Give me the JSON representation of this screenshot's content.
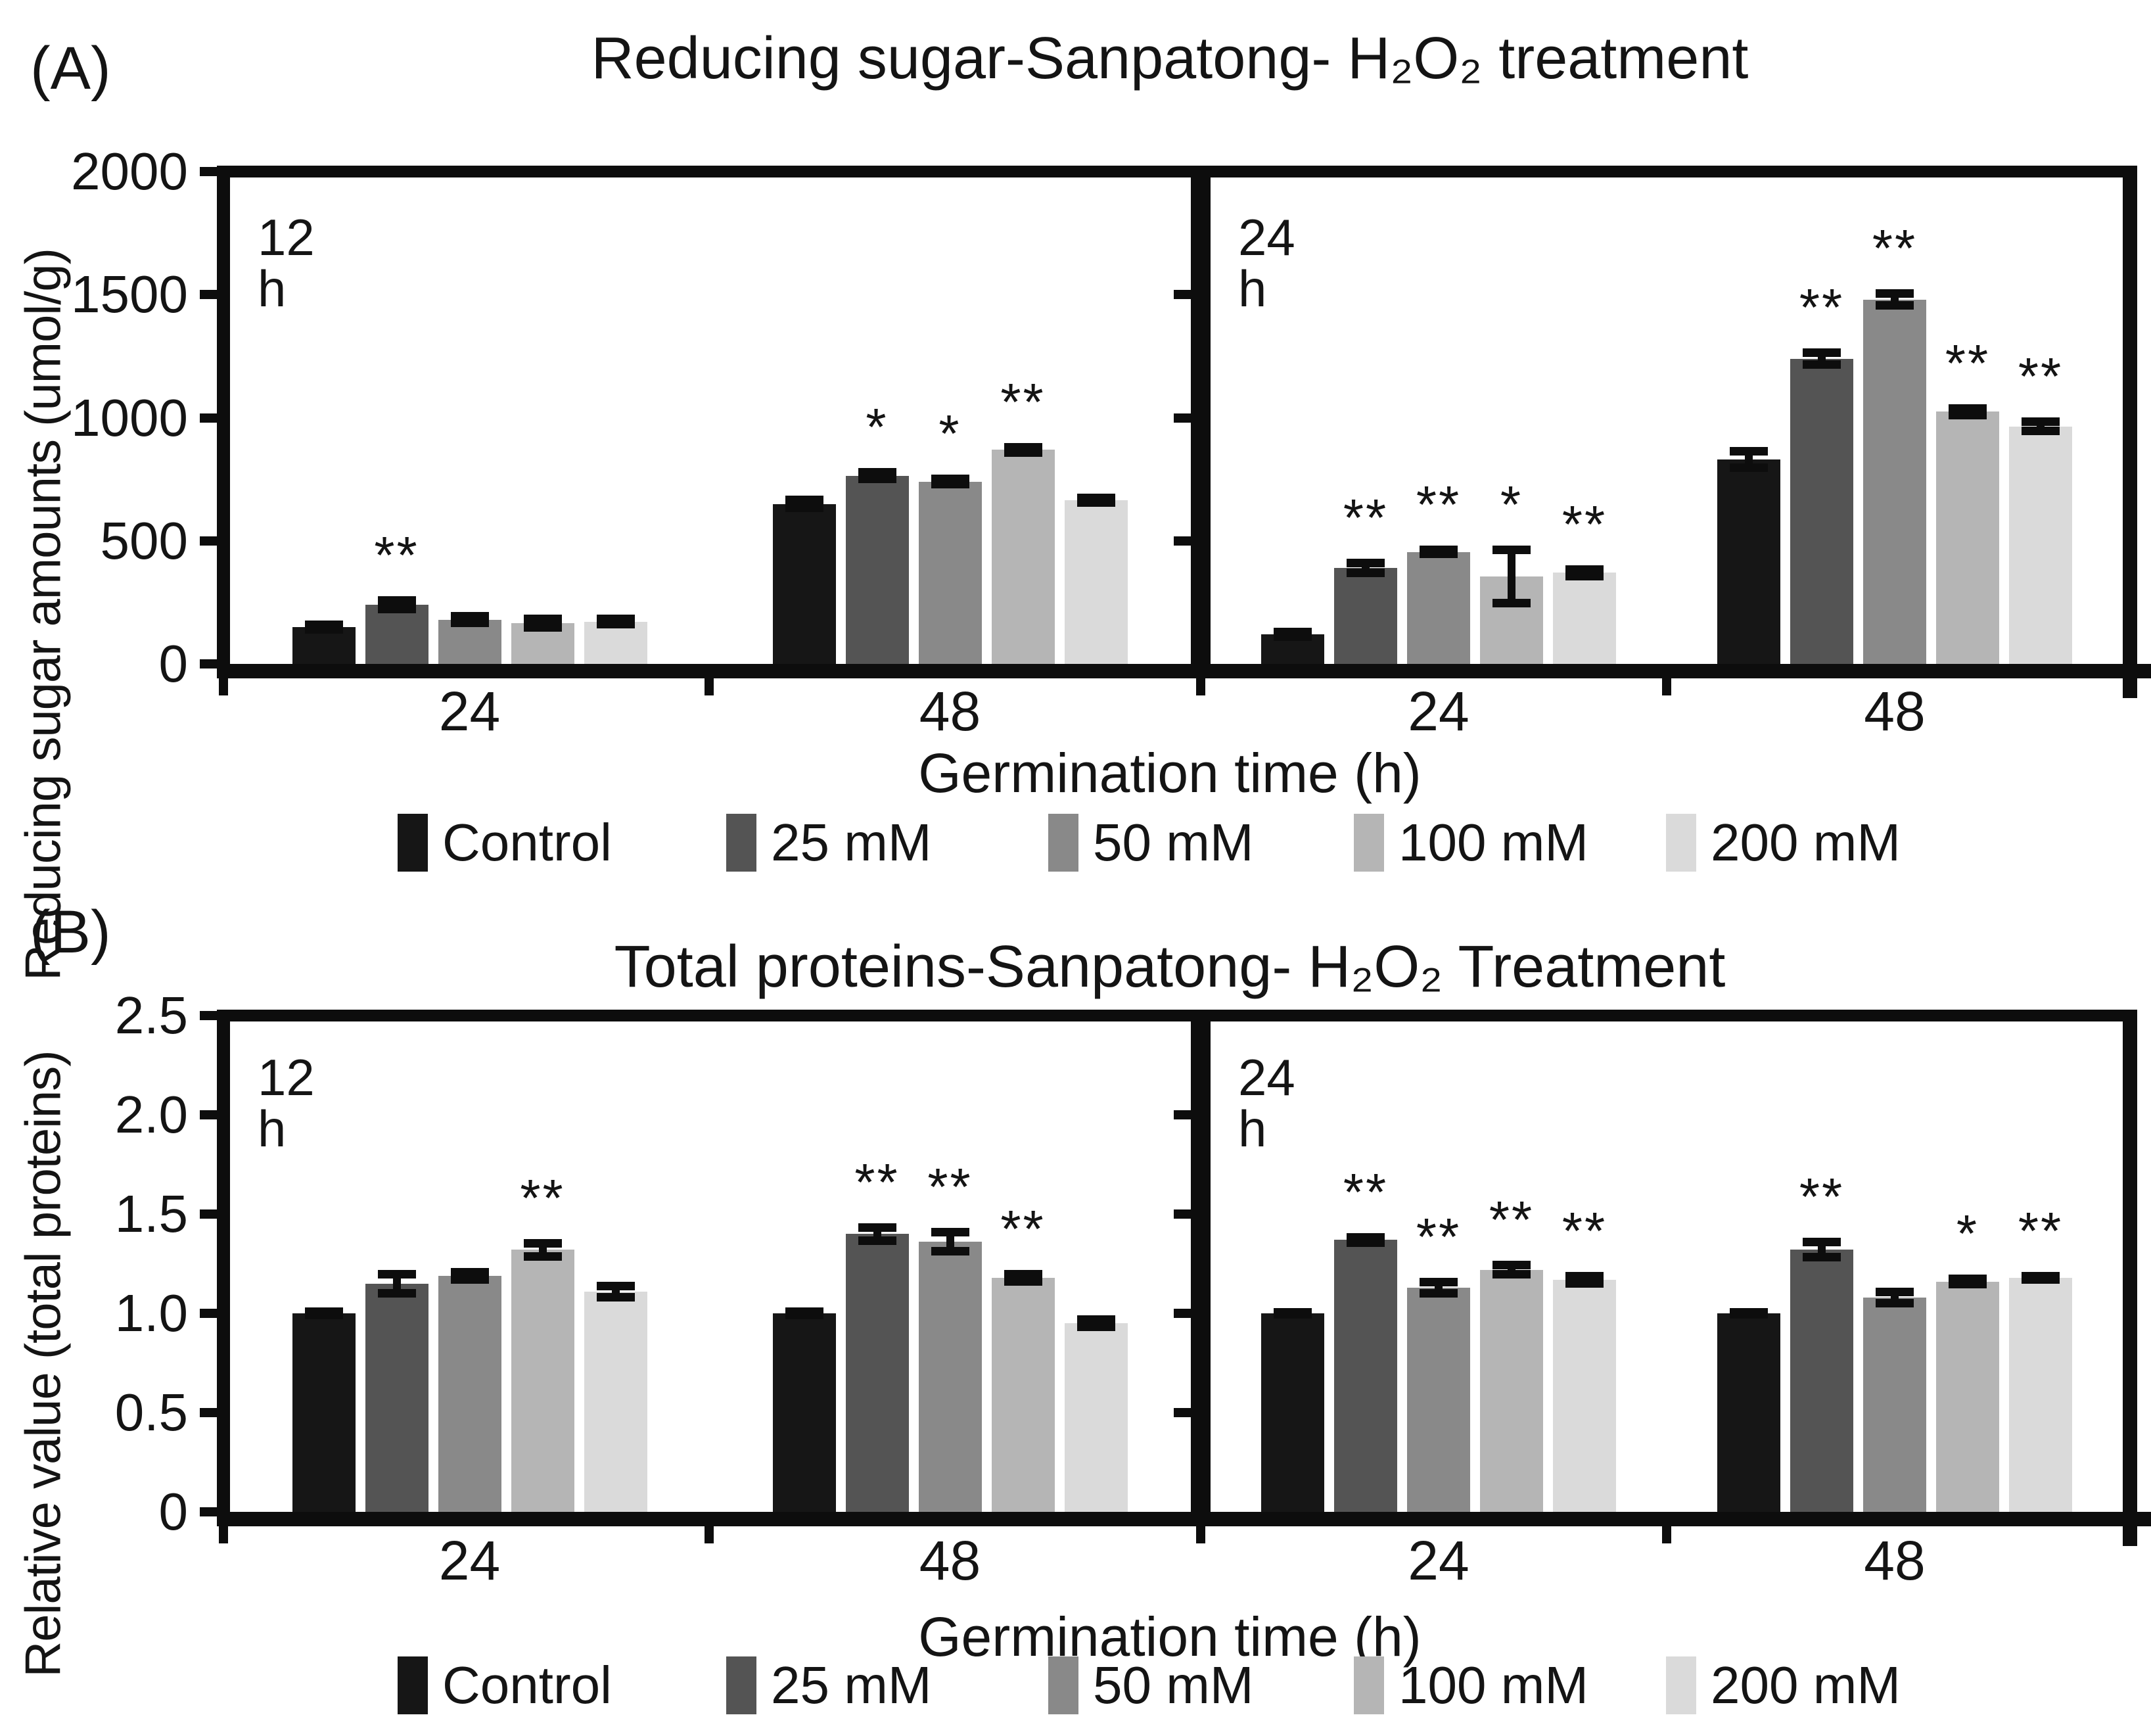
{
  "figure": {
    "panel_a_label": "(A)",
    "panel_b_label": "(B)"
  },
  "legend": {
    "entries": [
      {
        "label": "Control",
        "color": "#161616"
      },
      {
        "label": "25 mM",
        "color": "#545454"
      },
      {
        "label": "50 mM",
        "color": "#898989"
      },
      {
        "label": "100 mM",
        "color": "#b5b5b5"
      },
      {
        "label": "200 mM",
        "color": "#dadada"
      }
    ]
  },
  "chart_data": [
    {
      "id": "A",
      "type": "bar",
      "title": "Reducing sugar-Sanpatong- H₂O₂  treatment",
      "ylabel": "Reducing sugar amounts (umol/g)",
      "xlabel": "Germination time (h)",
      "ylim": [
        0,
        2000
      ],
      "yticks": [
        0,
        500,
        1000,
        1500,
        2000
      ],
      "ytick_labels": [
        "0",
        "500",
        "1000",
        "1500",
        "2000"
      ],
      "series": [
        "Control",
        "25 mM",
        "50 mM",
        "100 mM",
        "200 mM"
      ],
      "legend_position": "bottom",
      "grid": false,
      "subplots": [
        {
          "label": "12 h",
          "groups": [
            {
              "category": "24",
              "values": [
                150,
                240,
                180,
                165,
                172
              ],
              "errors": [
                10,
                18,
                15,
                18,
                12
              ],
              "sig": [
                "",
                "**",
                "",
                "",
                ""
              ]
            },
            {
              "category": "48",
              "values": [
                650,
                765,
                740,
                870,
                665
              ],
              "errors": [
                18,
                15,
                12,
                12,
                10
              ],
              "sig": [
                "",
                "*",
                "*",
                "**",
                ""
              ]
            }
          ]
        },
        {
          "label": "24 h",
          "groups": [
            {
              "category": "24",
              "values": [
                120,
                390,
                455,
                355,
                370
              ],
              "errors": [
                10,
                22,
                10,
                110,
                15
              ],
              "sig": [
                "",
                "**",
                "**",
                "*",
                "**"
              ]
            },
            {
              "category": "48",
              "values": [
                830,
                1240,
                1480,
                1025,
                965
              ],
              "errors": [
                35,
                25,
                25,
                15,
                20
              ],
              "sig": [
                "",
                "**",
                "**",
                "**",
                "**"
              ]
            }
          ]
        }
      ]
    },
    {
      "id": "B",
      "type": "bar",
      "title": "Total proteins-Sanpatong- H₂O₂  Treatment",
      "ylabel": "Relative value (total proteins)",
      "xlabel": "Germination time (h)",
      "ylim": [
        0,
        2.5
      ],
      "yticks": [
        0,
        0.5,
        1.0,
        1.5,
        2.0,
        2.5
      ],
      "ytick_labels": [
        "0",
        "0.5",
        "1.0",
        "1.5",
        "2.0",
        "2.5"
      ],
      "series": [
        "Control",
        "25 mM",
        "50 mM",
        "100 mM",
        "200 mM"
      ],
      "legend_position": "bottom",
      "grid": false,
      "subplots": [
        {
          "label": "12 h",
          "groups": [
            {
              "category": "24",
              "values": [
                1.0,
                1.15,
                1.19,
                1.32,
                1.11
              ],
              "errors": [
                0.01,
                0.05,
                0.02,
                0.035,
                0.03
              ],
              "sig": [
                "",
                "",
                "",
                "**",
                ""
              ]
            },
            {
              "category": "48",
              "values": [
                1.0,
                1.4,
                1.36,
                1.18,
                0.95
              ],
              "errors": [
                0.01,
                0.035,
                0.05,
                0.02,
                0.02
              ],
              "sig": [
                "",
                "**",
                "**",
                "**",
                ""
              ]
            }
          ]
        },
        {
          "label": "24 h",
          "groups": [
            {
              "category": "24",
              "values": [
                1.0,
                1.37,
                1.13,
                1.22,
                1.17
              ],
              "errors": [
                0.005,
                0.015,
                0.03,
                0.025,
                0.02
              ],
              "sig": [
                "",
                "**",
                "**",
                "**",
                "**"
              ]
            },
            {
              "category": "48",
              "values": [
                1.0,
                1.32,
                1.08,
                1.16,
                1.18
              ],
              "errors": [
                0.005,
                0.04,
                0.03,
                0.015,
                0.01
              ],
              "sig": [
                "",
                "**",
                "",
                "*",
                "**"
              ]
            }
          ]
        }
      ]
    }
  ]
}
